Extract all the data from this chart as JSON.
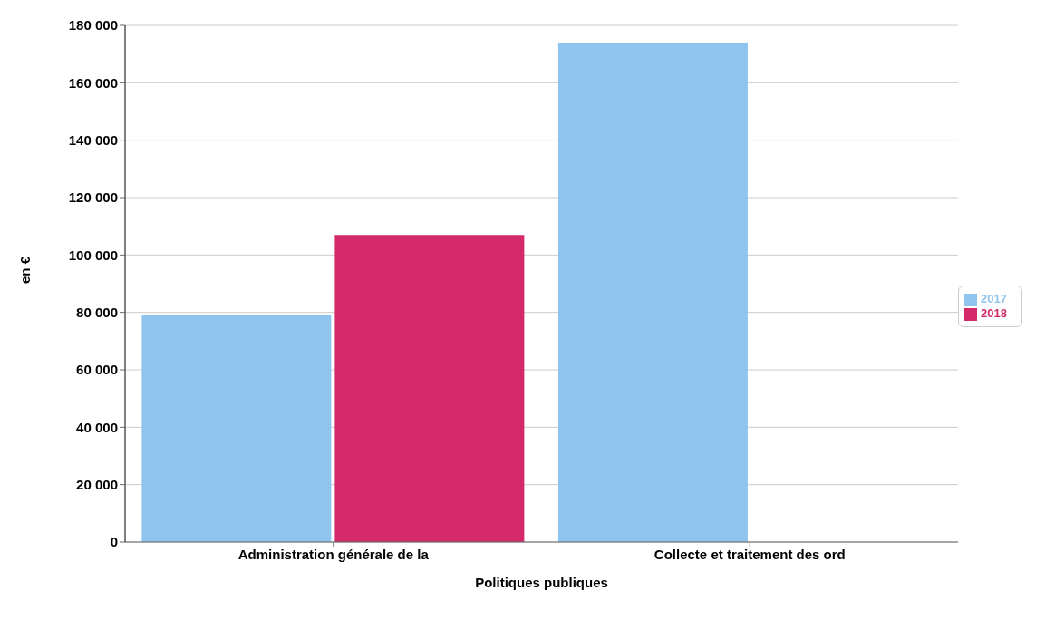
{
  "chart_data": {
    "type": "bar",
    "xlabel": "Politiques publiques",
    "ylabel": "en €",
    "categories": [
      "Administration générale de la",
      "Collecte et traitement des ord"
    ],
    "series": [
      {
        "name": "2017",
        "color": "#8ec4ee",
        "values": [
          79000,
          174000
        ]
      },
      {
        "name": "2018",
        "color": "#d42a6a",
        "values": [
          107000,
          0
        ]
      }
    ],
    "ylim": [
      0,
      180000
    ],
    "yticks": [
      {
        "value": 0,
        "label": "0"
      },
      {
        "value": 20000,
        "label": "20 000"
      },
      {
        "value": 40000,
        "label": "40 000"
      },
      {
        "value": 60000,
        "label": "60 000"
      },
      {
        "value": 80000,
        "label": "80 000"
      },
      {
        "value": 100000,
        "label": "100 000"
      },
      {
        "value": 120000,
        "label": "120 000"
      },
      {
        "value": 140000,
        "label": "140 000"
      },
      {
        "value": 160000,
        "label": "160 000"
      },
      {
        "value": 180000,
        "label": "180 000"
      }
    ],
    "grid": "y",
    "legend": "right"
  }
}
